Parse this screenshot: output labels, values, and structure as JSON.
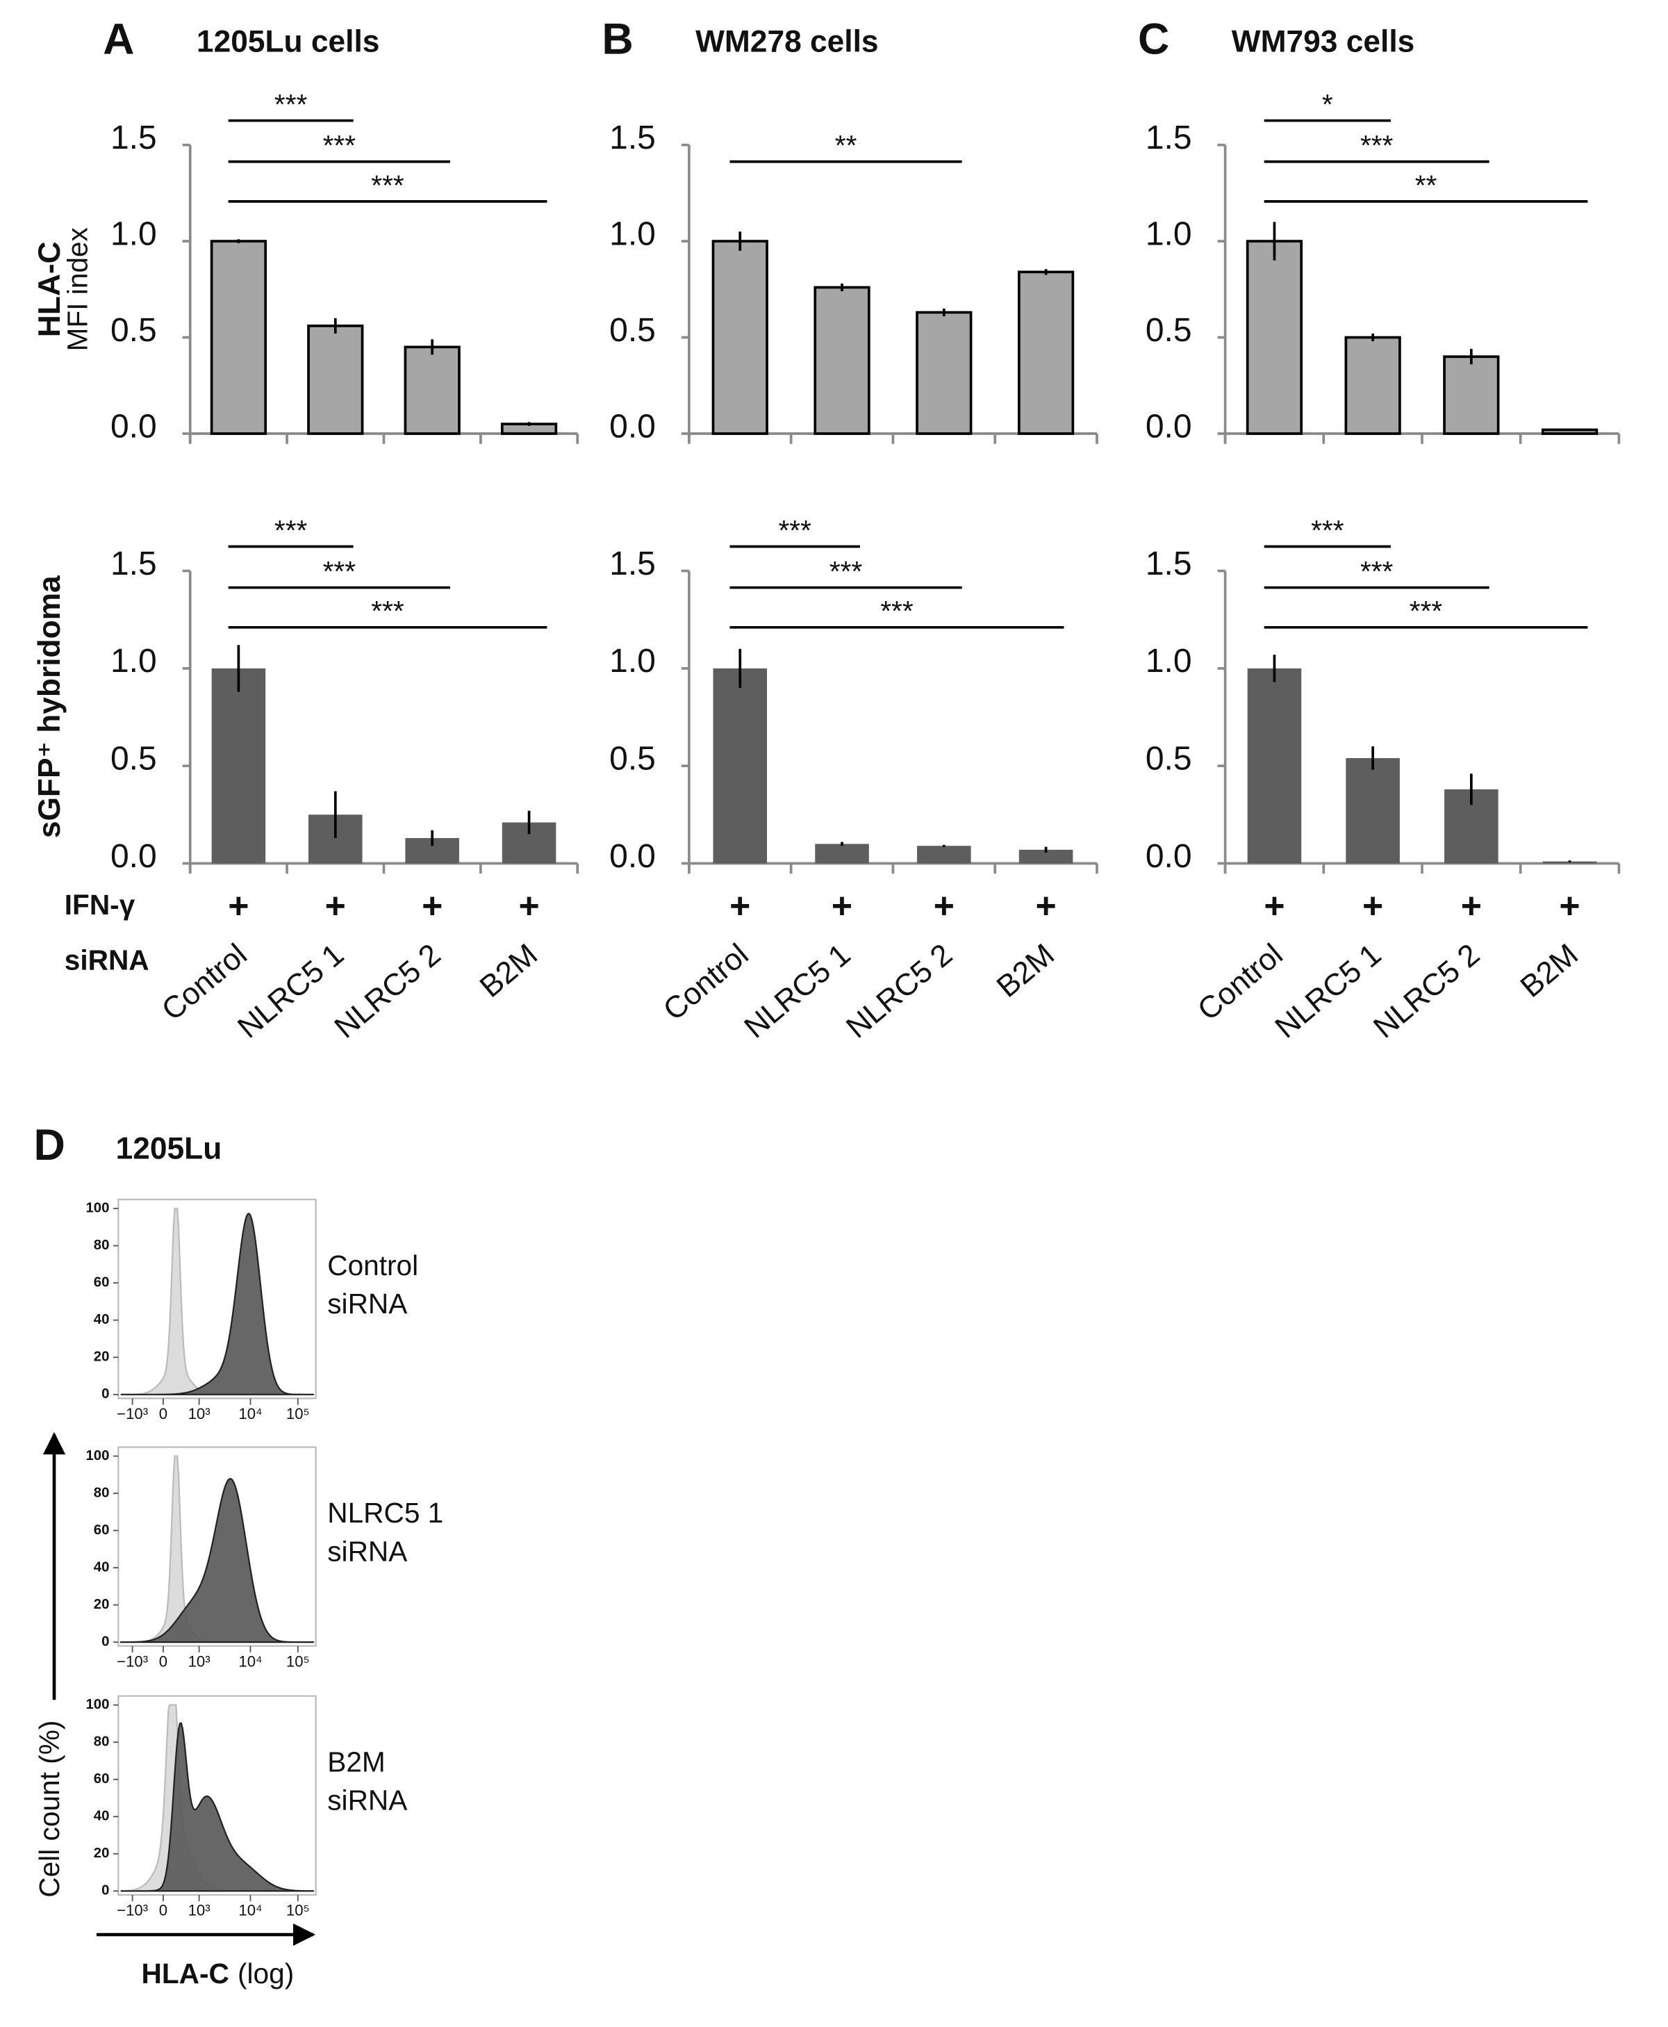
{
  "chart_data": [
    {
      "type": "bar",
      "panel": "A",
      "title": "1205Lu cells",
      "ylabel": [
        "HLA-C",
        "MFI index"
      ],
      "categories": [
        null,
        null,
        null,
        null
      ],
      "values": [
        1.0,
        0.56,
        0.45,
        0.05
      ],
      "errors": [
        0.01,
        0.04,
        0.04,
        0.01
      ],
      "color": "#a6a6a6",
      "ylim": [
        0,
        1.5
      ],
      "yticks": [
        {
          "value": 0,
          "label": "0.0"
        },
        {
          "value": 0.5,
          "label": "0.5"
        },
        {
          "value": 1,
          "label": "1.0"
        },
        {
          "value": 1.5,
          "label": "1.5"
        }
      ],
      "annotations": [
        {
          "label": "***",
          "span": [
            0,
            1
          ]
        },
        {
          "label": "***",
          "span": [
            0,
            2
          ]
        },
        {
          "label": "***",
          "span": [
            0,
            3
          ]
        }
      ]
    },
    {
      "type": "bar",
      "panel": "B",
      "title": "WM278 cells",
      "categories": [
        null,
        null,
        null,
        null
      ],
      "values": [
        1.0,
        0.76,
        0.63,
        0.84
      ],
      "errors": [
        0.05,
        0.02,
        0.02,
        0.015
      ],
      "color": "#a6a6a6",
      "ylim": [
        0,
        1.5
      ],
      "yticks": [
        {
          "value": 0,
          "label": "0.0"
        },
        {
          "value": 0.5,
          "label": "0.5"
        },
        {
          "value": 1,
          "label": "1.0"
        },
        {
          "value": 1.5,
          "label": "1.5"
        }
      ],
      "annotations": [
        {
          "label": "**",
          "span": [
            0,
            2
          ]
        }
      ]
    },
    {
      "type": "bar",
      "panel": "C",
      "title": "WM793 cells",
      "categories": [
        null,
        null,
        null,
        null
      ],
      "values": [
        1.0,
        0.5,
        0.4,
        0.02
      ],
      "errors": [
        0.1,
        0.02,
        0.04,
        0.005
      ],
      "color": "#a6a6a6",
      "ylim": [
        0,
        1.5
      ],
      "yticks": [
        {
          "value": 0,
          "label": "0.0"
        },
        {
          "value": 0.5,
          "label": "0.5"
        },
        {
          "value": 1,
          "label": "1.0"
        },
        {
          "value": 1.5,
          "label": "1.5"
        }
      ],
      "annotations": [
        {
          "label": "*",
          "span": [
            0,
            1
          ]
        },
        {
          "label": "***",
          "span": [
            0,
            2
          ]
        },
        {
          "label": "**",
          "span": [
            0,
            3
          ]
        }
      ]
    },
    {
      "type": "bar",
      "ylabel": [
        "sGFP⁺ hybridoma"
      ],
      "treatment_label": "IFN-γ",
      "category_label": "siRNA",
      "treatment": [
        "+",
        "+",
        "+",
        "+"
      ],
      "categories": [
        "Control",
        "NLRC5 1",
        "NLRC5 2",
        "B2M"
      ],
      "values": [
        1.0,
        0.25,
        0.13,
        0.21
      ],
      "errors": [
        0.12,
        0.12,
        0.04,
        0.06
      ],
      "color": "#5e5e5e",
      "ylim": [
        0,
        1.5
      ],
      "yticks": [
        {
          "value": 0,
          "label": "0.0"
        },
        {
          "value": 0.5,
          "label": "0.5"
        },
        {
          "value": 1,
          "label": "1.0"
        },
        {
          "value": 1.5,
          "label": "1.5"
        }
      ],
      "annotations": [
        {
          "label": "***",
          "span": [
            0,
            1
          ]
        },
        {
          "label": "***",
          "span": [
            0,
            2
          ]
        },
        {
          "label": "***",
          "span": [
            0,
            3
          ]
        }
      ]
    },
    {
      "type": "bar",
      "treatment": [
        "+",
        "+",
        "+",
        "+"
      ],
      "categories": [
        "Control",
        "NLRC5 1",
        "NLRC5 2",
        "B2M"
      ],
      "values": [
        1.0,
        0.1,
        0.09,
        0.07
      ],
      "errors": [
        0.1,
        0.01,
        0.005,
        0.015
      ],
      "color": "#5e5e5e",
      "ylim": [
        0,
        1.5
      ],
      "yticks": [
        {
          "value": 0,
          "label": "0.0"
        },
        {
          "value": 0.5,
          "label": "0.5"
        },
        {
          "value": 1,
          "label": "1.0"
        },
        {
          "value": 1.5,
          "label": "1.5"
        }
      ],
      "annotations": [
        {
          "label": "***",
          "span": [
            0,
            1
          ]
        },
        {
          "label": "***",
          "span": [
            0,
            2
          ]
        },
        {
          "label": "***",
          "span": [
            0,
            3
          ]
        }
      ]
    },
    {
      "type": "bar",
      "treatment": [
        "+",
        "+",
        "+",
        "+"
      ],
      "categories": [
        "Control",
        "NLRC5 1",
        "NLRC5 2",
        "B2M"
      ],
      "values": [
        1.0,
        0.54,
        0.38,
        0.01
      ],
      "errors": [
        0.07,
        0.06,
        0.08,
        0.005
      ],
      "color": "#5e5e5e",
      "ylim": [
        0,
        1.5
      ],
      "yticks": [
        {
          "value": 0,
          "label": "0.0"
        },
        {
          "value": 0.5,
          "label": "0.5"
        },
        {
          "value": 1,
          "label": "1.0"
        },
        {
          "value": 1.5,
          "label": "1.5"
        }
      ],
      "annotations": [
        {
          "label": "***",
          "span": [
            0,
            1
          ]
        },
        {
          "label": "***",
          "span": [
            0,
            2
          ]
        },
        {
          "label": "***",
          "span": [
            0,
            3
          ]
        }
      ]
    }
  ],
  "panel_d": {
    "panel": "D",
    "title": "1205Lu",
    "ylim": [
      0,
      100
    ],
    "yticks": [
      0,
      20,
      40,
      60,
      80,
      100
    ],
    "xticks": [
      "−10³",
      "0",
      "10³",
      "10⁴",
      "10⁵"
    ],
    "ylabel": "Cell count (%)",
    "xlabel": "HLA-C",
    "xlabel_unit": "(log)",
    "plots": [
      {
        "label": [
          "Control",
          "siRNA"
        ]
      },
      {
        "label": [
          "NLRC5 1",
          "siRNA"
        ]
      },
      {
        "label": [
          "B2M",
          "siRNA"
        ]
      }
    ]
  }
}
